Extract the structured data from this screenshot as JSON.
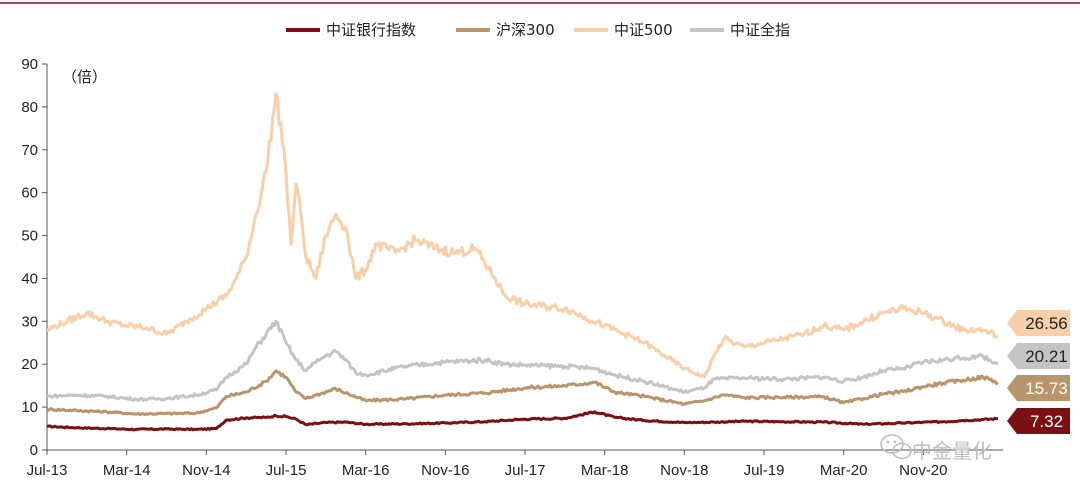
{
  "chart_data": {
    "type": "line",
    "unit_label": "（倍）",
    "ylim": [
      0,
      90
    ],
    "y_ticks": [
      0,
      10,
      20,
      30,
      40,
      50,
      60,
      70,
      80,
      90
    ],
    "x_ticks": [
      {
        "t": 0,
        "label": "Jul-13"
      },
      {
        "t": 8,
        "label": "Mar-14"
      },
      {
        "t": 16,
        "label": "Nov-14"
      },
      {
        "t": 24,
        "label": "Jul-15"
      },
      {
        "t": 32,
        "label": "Mar-16"
      },
      {
        "t": 40,
        "label": "Nov-16"
      },
      {
        "t": 48,
        "label": "Jul-17"
      },
      {
        "t": 56,
        "label": "Mar-18"
      },
      {
        "t": 64,
        "label": "Nov-18"
      },
      {
        "t": 72,
        "label": "Jul-19"
      },
      {
        "t": 80,
        "label": "Mar-20"
      },
      {
        "t": 88,
        "label": "Nov-20"
      }
    ],
    "x_range": [
      0,
      96
    ],
    "legend_position": "top-center",
    "grid": false,
    "series": [
      {
        "name": "中证银行指数",
        "color": "#7b1014",
        "end_value": "7.32",
        "points": [
          [
            0,
            5.5
          ],
          [
            3,
            5.2
          ],
          [
            6,
            5.0
          ],
          [
            9,
            4.8
          ],
          [
            12,
            4.9
          ],
          [
            15,
            4.8
          ],
          [
            17,
            5.0
          ],
          [
            18,
            7.0
          ],
          [
            20,
            7.5
          ],
          [
            22,
            7.6
          ],
          [
            23,
            8.0
          ],
          [
            24,
            7.8
          ],
          [
            25,
            7.2
          ],
          [
            26,
            5.9
          ],
          [
            28,
            6.4
          ],
          [
            30,
            6.5
          ],
          [
            32,
            6.0
          ],
          [
            36,
            6.1
          ],
          [
            40,
            6.3
          ],
          [
            44,
            6.6
          ],
          [
            48,
            7.2
          ],
          [
            52,
            7.4
          ],
          [
            55,
            8.9
          ],
          [
            57,
            7.6
          ],
          [
            60,
            6.9
          ],
          [
            64,
            6.4
          ],
          [
            67,
            6.5
          ],
          [
            70,
            6.7
          ],
          [
            74,
            6.6
          ],
          [
            78,
            6.5
          ],
          [
            82,
            6.0
          ],
          [
            86,
            6.3
          ],
          [
            90,
            6.6
          ],
          [
            92,
            6.9
          ],
          [
            94,
            7.1
          ],
          [
            95.5,
            7.32
          ]
        ]
      },
      {
        "name": "沪深300",
        "color": "#b8956a",
        "end_value": "15.73",
        "points": [
          [
            0,
            9.5
          ],
          [
            3,
            9.2
          ],
          [
            6,
            8.9
          ],
          [
            9,
            8.4
          ],
          [
            12,
            8.5
          ],
          [
            15,
            8.6
          ],
          [
            17,
            9.8
          ],
          [
            18,
            12.5
          ],
          [
            20,
            13.5
          ],
          [
            22,
            16.0
          ],
          [
            23,
            18.5
          ],
          [
            24,
            17.0
          ],
          [
            25,
            13.5
          ],
          [
            26,
            12.0
          ],
          [
            27,
            12.8
          ],
          [
            29,
            14.3
          ],
          [
            30,
            13.3
          ],
          [
            32,
            11.5
          ],
          [
            36,
            11.9
          ],
          [
            40,
            12.8
          ],
          [
            44,
            13.3
          ],
          [
            48,
            14.5
          ],
          [
            52,
            15.0
          ],
          [
            55,
            15.8
          ],
          [
            57,
            13.5
          ],
          [
            60,
            12.5
          ],
          [
            64,
            10.7
          ],
          [
            66,
            11.5
          ],
          [
            68,
            12.9
          ],
          [
            70,
            12.2
          ],
          [
            74,
            12.3
          ],
          [
            78,
            12.4
          ],
          [
            80,
            11.0
          ],
          [
            82,
            12.0
          ],
          [
            84,
            13.1
          ],
          [
            86,
            13.6
          ],
          [
            88,
            14.8
          ],
          [
            90,
            15.6
          ],
          [
            92,
            16.3
          ],
          [
            94,
            17.0
          ],
          [
            95.5,
            15.73
          ]
        ]
      },
      {
        "name": "中证500",
        "color": "#f8cfa8",
        "end_value": "26.56",
        "points": [
          [
            0,
            28
          ],
          [
            2,
            30
          ],
          [
            4,
            32
          ],
          [
            6,
            30
          ],
          [
            8,
            29
          ],
          [
            10,
            28.5
          ],
          [
            12,
            27
          ],
          [
            14,
            30
          ],
          [
            16,
            33
          ],
          [
            18,
            36
          ],
          [
            19,
            40
          ],
          [
            20,
            45
          ],
          [
            21,
            55
          ],
          [
            22,
            65
          ],
          [
            23,
            83
          ],
          [
            23.8,
            70
          ],
          [
            24.5,
            48
          ],
          [
            25,
            62
          ],
          [
            25.5,
            55
          ],
          [
            26,
            45
          ],
          [
            27,
            40
          ],
          [
            28,
            50
          ],
          [
            29,
            55
          ],
          [
            30,
            52
          ],
          [
            31,
            40
          ],
          [
            32,
            42
          ],
          [
            33,
            48
          ],
          [
            35,
            46
          ],
          [
            37,
            49
          ],
          [
            39,
            47
          ],
          [
            41,
            46
          ],
          [
            43,
            47
          ],
          [
            45,
            40
          ],
          [
            46,
            36
          ],
          [
            48,
            34
          ],
          [
            52,
            33
          ],
          [
            54,
            31
          ],
          [
            56,
            29
          ],
          [
            58,
            27
          ],
          [
            60,
            25
          ],
          [
            62,
            22
          ],
          [
            64,
            19
          ],
          [
            66,
            17
          ],
          [
            67,
            22
          ],
          [
            68,
            26
          ],
          [
            70,
            24
          ],
          [
            72,
            25
          ],
          [
            74,
            26
          ],
          [
            76,
            27
          ],
          [
            78,
            29
          ],
          [
            80,
            28
          ],
          [
            82,
            30
          ],
          [
            84,
            32
          ],
          [
            86,
            33
          ],
          [
            88,
            32
          ],
          [
            90,
            30
          ],
          [
            92,
            28
          ],
          [
            94,
            28
          ],
          [
            95.5,
            26.56
          ]
        ]
      },
      {
        "name": "中证全指",
        "color": "#c4c4c4",
        "end_value": "20.21",
        "points": [
          [
            0,
            12.5
          ],
          [
            3,
            12.8
          ],
          [
            6,
            12.5
          ],
          [
            9,
            11.8
          ],
          [
            12,
            12.0
          ],
          [
            15,
            12.8
          ],
          [
            17,
            14.0
          ],
          [
            18,
            17.0
          ],
          [
            20,
            20.0
          ],
          [
            21,
            24.0
          ],
          [
            22,
            27.0
          ],
          [
            23,
            30.0
          ],
          [
            24,
            25.0
          ],
          [
            25,
            21.0
          ],
          [
            26,
            18.5
          ],
          [
            27,
            20.5
          ],
          [
            28,
            22.0
          ],
          [
            29,
            23.0
          ],
          [
            30,
            21.0
          ],
          [
            31,
            18.0
          ],
          [
            32,
            17.5
          ],
          [
            36,
            19.5
          ],
          [
            40,
            20.5
          ],
          [
            44,
            21.0
          ],
          [
            46,
            20.0
          ],
          [
            48,
            19.8
          ],
          [
            52,
            19.5
          ],
          [
            55,
            19.0
          ],
          [
            57,
            17.5
          ],
          [
            60,
            16.0
          ],
          [
            64,
            13.5
          ],
          [
            66,
            14.5
          ],
          [
            67,
            16.5
          ],
          [
            70,
            16.8
          ],
          [
            74,
            16.5
          ],
          [
            78,
            17.0
          ],
          [
            80,
            16.0
          ],
          [
            82,
            17.0
          ],
          [
            84,
            18.5
          ],
          [
            86,
            19.0
          ],
          [
            88,
            20.5
          ],
          [
            90,
            21.0
          ],
          [
            92,
            21.5
          ],
          [
            94,
            21.8
          ],
          [
            95.5,
            20.21
          ]
        ]
      }
    ]
  },
  "watermark": {
    "text": "中金量化",
    "icon": "wechat-icon"
  }
}
